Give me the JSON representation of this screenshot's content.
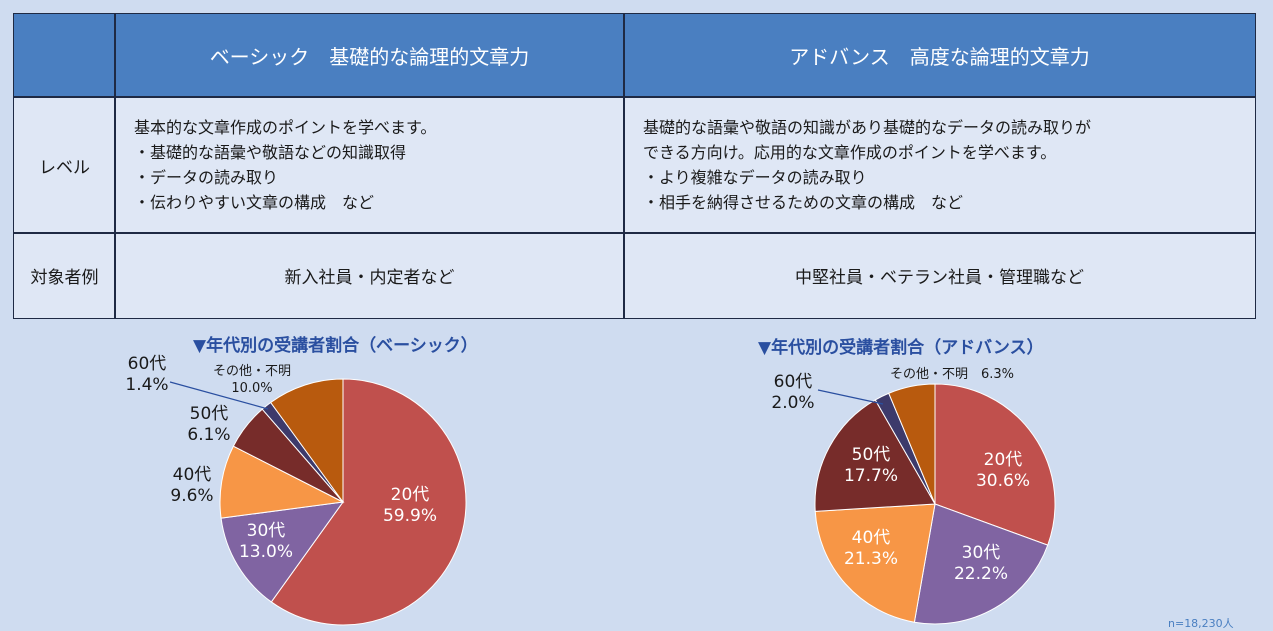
{
  "table": {
    "headers": [
      "",
      "ベーシック　基礎的な論理的文章力",
      "アドバンス　高度な論理的文章力"
    ],
    "rows": [
      {
        "label": "レベル",
        "basic": [
          "基本的な文章作成のポイントを学べます。",
          "・基礎的な語彙や敬語などの知識取得",
          "・データの読み取り",
          "・伝わりやすい文章の構成　など"
        ],
        "advance": [
          "基礎的な語彙や敬語の知識があり基礎的なデータの読み取りが",
          "できる方向け。応用的な文章作成のポイントを学べます。",
          "・より複雑なデータの読み取り",
          "・相手を納得させるための文章の構成　など"
        ]
      },
      {
        "label": "対象者例",
        "basic": "新入社員・内定者など",
        "advance": "中堅社員・ベテラン社員・管理職など"
      }
    ]
  },
  "colors": {
    "20代": "#c0504d",
    "30代": "#8064a2",
    "40代": "#f79646",
    "50代": "#772c2a",
    "60代": "#3d3a6b",
    "その他・不明": "#b85a0e",
    "header": "#4a7fc1",
    "title": "#2a4fa0"
  },
  "chart_data": [
    {
      "type": "pie",
      "title": "▼年代別の受講者割合（ベーシック）",
      "slices": [
        {
          "label": "20代",
          "value": 59.9,
          "text": "59.9%"
        },
        {
          "label": "30代",
          "value": 13.0,
          "text": "13.0%"
        },
        {
          "label": "40代",
          "value": 9.6,
          "text": "9.6%"
        },
        {
          "label": "50代",
          "value": 6.1,
          "text": "6.1%"
        },
        {
          "label": "60代",
          "value": 1.4,
          "text": "1.4%"
        },
        {
          "label": "その他・不明",
          "value": 10.0,
          "text": "10.0%"
        }
      ]
    },
    {
      "type": "pie",
      "title": "▼年代別の受講者割合（アドバンス）",
      "slices": [
        {
          "label": "20代",
          "value": 30.6,
          "text": "30.6%"
        },
        {
          "label": "30代",
          "value": 22.2,
          "text": "22.2%"
        },
        {
          "label": "40代",
          "value": 21.3,
          "text": "21.3%"
        },
        {
          "label": "50代",
          "value": 17.7,
          "text": "17.7%"
        },
        {
          "label": "60代",
          "value": 2.0,
          "text": "2.0%"
        },
        {
          "label": "その他・不明",
          "value": 6.3,
          "text": "6.3%"
        }
      ]
    }
  ],
  "footnote": "n=18,230人"
}
